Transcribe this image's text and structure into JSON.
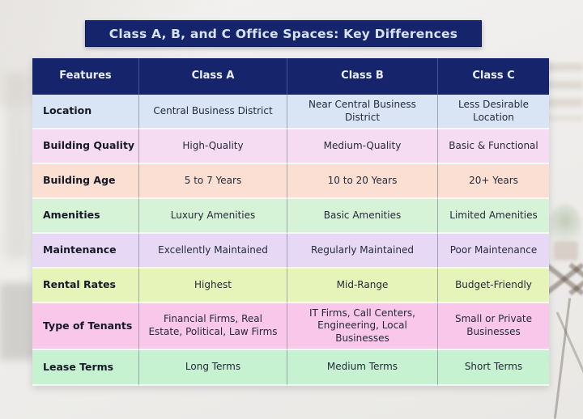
{
  "title_bar": {
    "text": "Class A, B, and C Office Spaces: Key Differences"
  },
  "chart_data": {
    "type": "table",
    "title": "Class A, B, and C Office Spaces: Key Differences",
    "columns": [
      "Features",
      "Class A",
      "Class B",
      "Class C"
    ],
    "rows": [
      {
        "cells": [
          "Location",
          "Central Business District",
          "Near Central Business District",
          "Less Desirable Location"
        ],
        "row_bg": "#d9e5f4"
      },
      {
        "cells": [
          "Building Quality",
          "High-Quality",
          "Medium-Quality",
          "Basic & Functional"
        ],
        "row_bg": "#f5dcf2"
      },
      {
        "cells": [
          "Building Age",
          "5 to 7 Years",
          "10 to 20 Years",
          "20+ Years"
        ],
        "row_bg": "#fbdfd3"
      },
      {
        "cells": [
          "Amenities",
          "Luxury Amenities",
          "Basic Amenities",
          "Limited Amenities"
        ],
        "row_bg": "#d7f3d7"
      },
      {
        "cells": [
          "Maintenance",
          "Excellently Maintained",
          "Regularly Maintained",
          "Poor Maintenance"
        ],
        "row_bg": "#e7d9f5"
      },
      {
        "cells": [
          "Rental Rates",
          "Highest",
          "Mid-Range",
          "Budget-Friendly"
        ],
        "row_bg": "#e6f4b9"
      },
      {
        "cells": [
          "Type of Tenants",
          "Financial Firms, Real Estate, Political, Law Firms",
          "IT Firms, Call Centers, Engineering, Local Businesses",
          "Small or Private Businesses"
        ],
        "row_bg": "#f8c7e9"
      },
      {
        "cells": [
          "Lease Terms",
          "Long Terms",
          "Medium Terms",
          "Short Terms"
        ],
        "row_bg": "#c6f2d2"
      }
    ],
    "legend": "none",
    "grid": "on"
  },
  "colors": {
    "header_bg": "#16256b",
    "title_bg": "#16256b",
    "title_text": "#d7e2f2",
    "header_text": "#e9eefb",
    "feature_text": "#161a26",
    "cell_text": "#252b3a",
    "row_separator": "#faf9f7",
    "column_separator": "#6c7284"
  }
}
